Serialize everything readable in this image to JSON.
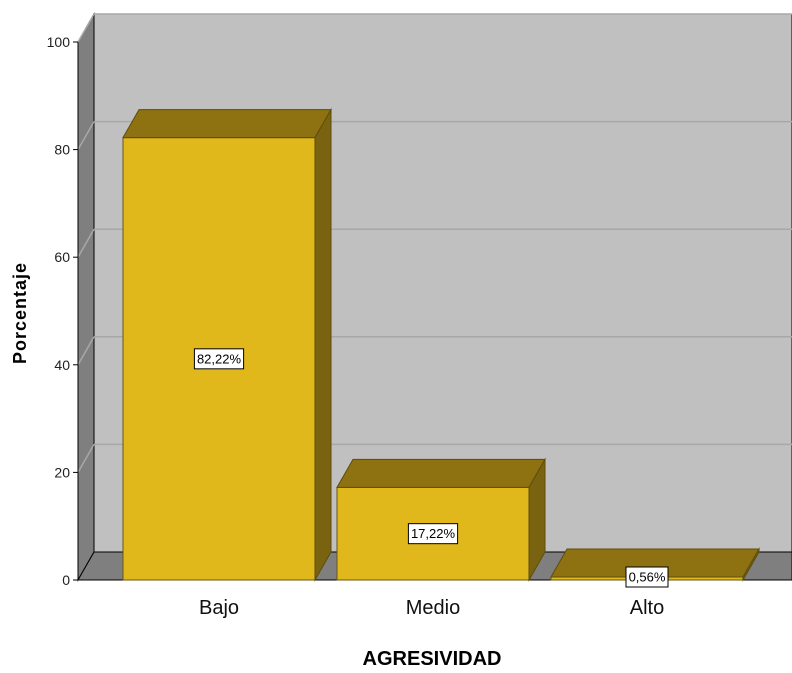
{
  "chart_data": {
    "type": "bar",
    "categories": [
      "Bajo",
      "Medio",
      "Alto"
    ],
    "values": [
      82.22,
      17.22,
      0.56
    ],
    "data_labels": [
      "82,22%",
      "17,22%",
      "0,56%"
    ],
    "title": "",
    "xlabel": "AGRESIVIDAD",
    "ylabel": "Porcentaje",
    "ylim": [
      0,
      100
    ],
    "yticks": [
      0,
      20,
      40,
      60,
      80,
      100
    ],
    "grid": true,
    "bar_color": "#e0b81c",
    "bar_top_color": "#8e7211",
    "bar_side_color": "#7a6310",
    "wall_color": "#c0c0c0",
    "floor_color": "#7f7f7f"
  }
}
